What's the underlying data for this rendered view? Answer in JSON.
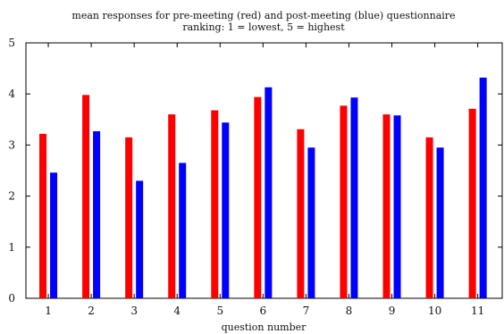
{
  "chart_data": {
    "type": "bar",
    "title": "mean responses for pre-meeting (red) and post-meeting (blue) questionnaire",
    "subtitle": "ranking: 1 = lowest, 5 = highest",
    "xlabel": "question number",
    "ylabel": "",
    "categories": [
      "1",
      "2",
      "3",
      "4",
      "5",
      "6",
      "7",
      "8",
      "9",
      "10",
      "11"
    ],
    "ylim": [
      0,
      5
    ],
    "yticks": [
      0,
      1,
      2,
      3,
      4,
      5
    ],
    "grid": false,
    "series": [
      {
        "color": "#ff0000",
        "values": [
          3.22,
          3.98,
          3.15,
          3.6,
          3.68,
          3.94,
          3.31,
          3.77,
          3.6,
          3.15,
          3.71
        ]
      },
      {
        "color": "#0000ff",
        "values": [
          2.46,
          3.27,
          2.3,
          2.65,
          3.44,
          4.13,
          2.95,
          3.93,
          3.58,
          2.95,
          4.32
        ]
      }
    ]
  }
}
